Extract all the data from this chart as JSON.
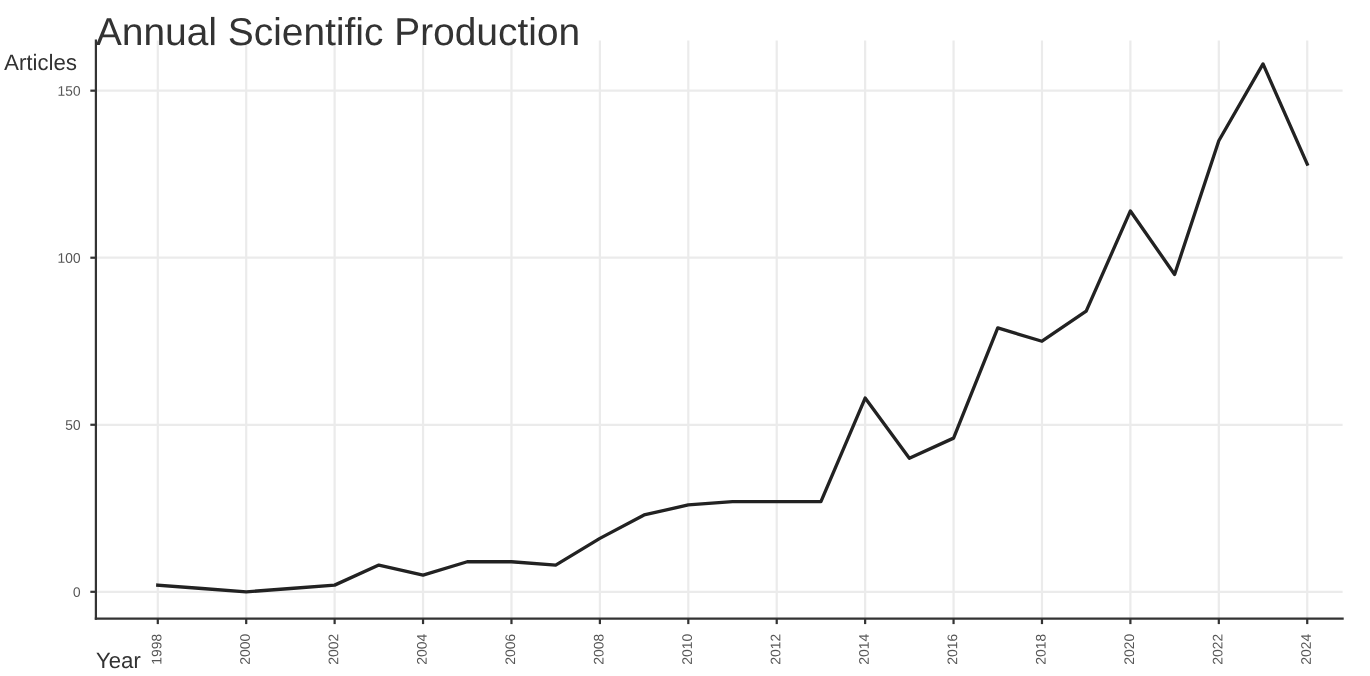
{
  "chart_data": {
    "type": "line",
    "title": "Annual Scientific Production",
    "xlabel": "Year",
    "ylabel": "Articles",
    "x": [
      1998,
      1999,
      2000,
      2001,
      2002,
      2003,
      2004,
      2005,
      2006,
      2007,
      2008,
      2009,
      2010,
      2011,
      2012,
      2013,
      2014,
      2015,
      2016,
      2017,
      2018,
      2019,
      2020,
      2021,
      2022,
      2023,
      2024
    ],
    "series": [
      {
        "color": "#222222",
        "values": [
          2,
          1,
          0,
          1,
          2,
          8,
          5,
          9,
          9,
          8,
          16,
          23,
          26,
          27,
          27,
          27,
          58,
          40,
          46,
          79,
          75,
          84,
          114,
          95,
          135,
          158,
          128
        ]
      }
    ],
    "xlim": [
      1996.6,
      2024.8
    ],
    "ylim": [
      -8,
      165
    ],
    "xticks": [
      1998,
      2000,
      2002,
      2004,
      2006,
      2008,
      2010,
      2012,
      2014,
      2016,
      2018,
      2020,
      2022,
      2024
    ],
    "yticks": [
      0,
      50,
      100,
      150
    ],
    "grid": true,
    "legend": false,
    "marker": "none",
    "line_style": "solid"
  }
}
